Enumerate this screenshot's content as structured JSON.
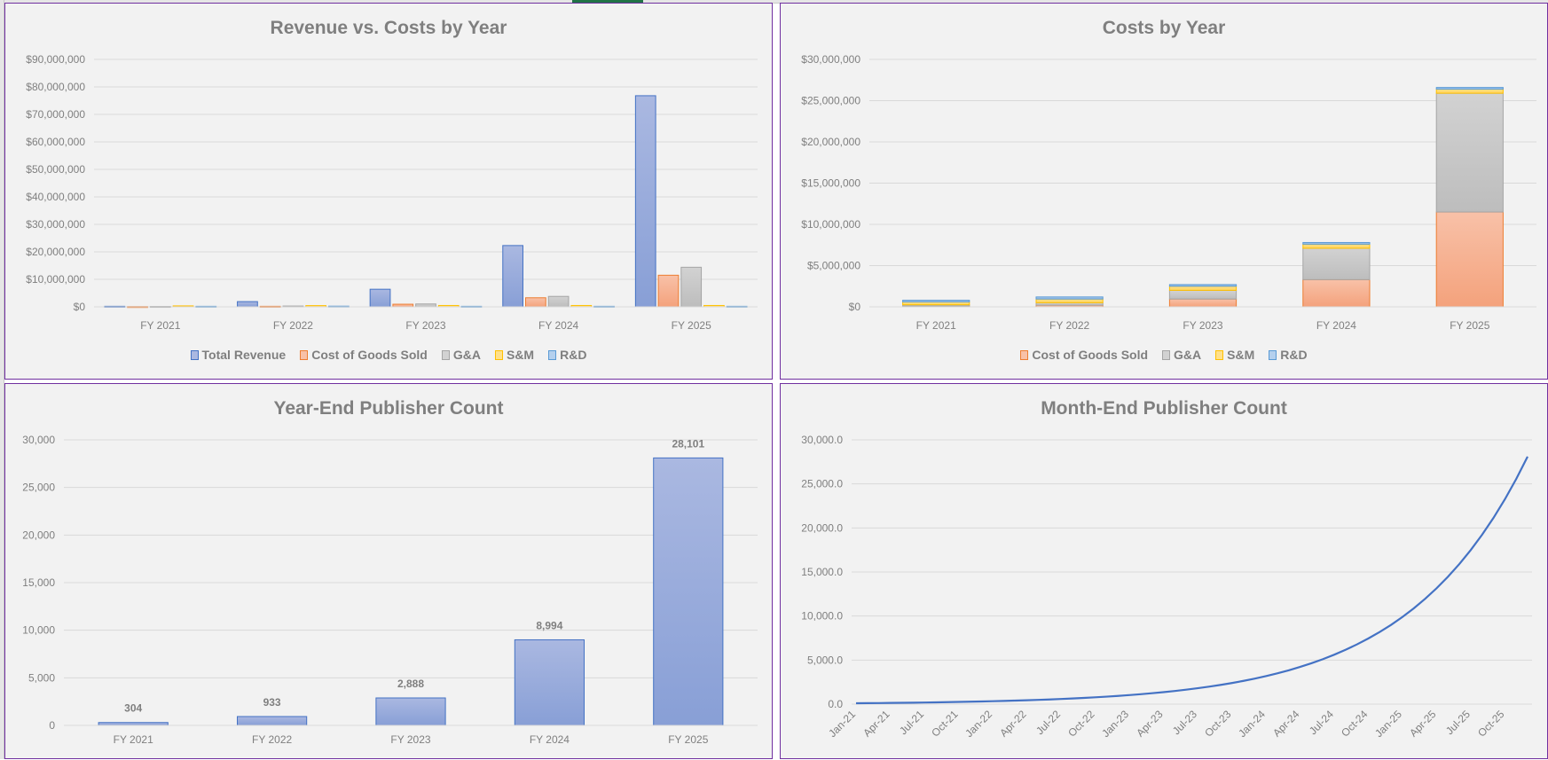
{
  "chart_data": [
    {
      "type": "bar",
      "title": "Revenue vs. Costs by Year",
      "categories": [
        "FY 2021",
        "FY 2022",
        "FY 2023",
        "FY 2024",
        "FY 2025"
      ],
      "ylim": [
        0,
        90000000
      ],
      "ytick_labels": [
        "$0",
        "$10,000,000",
        "$20,000,000",
        "$30,000,000",
        "$40,000,000",
        "$50,000,000",
        "$60,000,000",
        "$70,000,000",
        "$80,000,000",
        "$90,000,000"
      ],
      "grid": true,
      "legend": "bottom",
      "series": [
        {
          "name": "Total Revenue",
          "color": "#4472c4",
          "values": [
            200000,
            1900000,
            6400000,
            22300000,
            76800000
          ]
        },
        {
          "name": "Cost of Goods Sold",
          "color": "#ed7d31",
          "values": [
            100000,
            200000,
            950000,
            3300000,
            11500000
          ]
        },
        {
          "name": "G&A",
          "color": "#a5a5a5",
          "values": [
            150000,
            300000,
            1050000,
            3800000,
            14400000
          ]
        },
        {
          "name": "S&M",
          "color": "#ffc000",
          "values": [
            350000,
            450000,
            500000,
            500000,
            500000
          ]
        },
        {
          "name": "R&D",
          "color": "#5b9bd5",
          "values": [
            200000,
            250000,
            200000,
            200000,
            200000
          ]
        }
      ]
    },
    {
      "type": "bar",
      "stacked": true,
      "title": "Costs by Year",
      "categories": [
        "FY 2021",
        "FY 2022",
        "FY 2023",
        "FY 2024",
        "FY 2025"
      ],
      "ylim": [
        0,
        30000000
      ],
      "ytick_labels": [
        "$0",
        "$5,000,000",
        "$10,000,000",
        "$15,000,000",
        "$20,000,000",
        "$25,000,000",
        "$30,000,000"
      ],
      "grid": true,
      "legend": "bottom",
      "series": [
        {
          "name": "Cost of Goods Sold",
          "color": "#ed7d31",
          "values": [
            100000,
            200000,
            950000,
            3300000,
            11500000
          ]
        },
        {
          "name": "G&A",
          "color": "#a5a5a5",
          "values": [
            150000,
            300000,
            1050000,
            3800000,
            14400000
          ]
        },
        {
          "name": "S&M",
          "color": "#ffc000",
          "values": [
            350000,
            450000,
            500000,
            500000,
            500000
          ]
        },
        {
          "name": "R&D",
          "color": "#5b9bd5",
          "values": [
            200000,
            250000,
            200000,
            200000,
            200000
          ]
        }
      ]
    },
    {
      "type": "bar",
      "title": "Year-End Publisher Count",
      "categories": [
        "FY 2021",
        "FY 2022",
        "FY 2023",
        "FY 2024",
        "FY 2025"
      ],
      "ylim": [
        0,
        30000
      ],
      "ytick_labels": [
        "0",
        "5,000",
        "10,000",
        "15,000",
        "20,000",
        "25,000",
        "30,000"
      ],
      "grid": true,
      "series": [
        {
          "color": "#4472c4",
          "values": [
            304,
            933,
            2888,
            8994,
            28101
          ]
        }
      ],
      "data_labels": [
        "304",
        "933",
        "2,888",
        "8,994",
        "28,101"
      ]
    },
    {
      "type": "line",
      "title": "Month-End Publisher Count",
      "categories": [
        "Jan-21",
        "Feb-21",
        "Mar-21",
        "Apr-21",
        "May-21",
        "Jun-21",
        "Jul-21",
        "Aug-21",
        "Sep-21",
        "Oct-21",
        "Nov-21",
        "Dec-21",
        "Jan-22",
        "Feb-22",
        "Mar-22",
        "Apr-22",
        "May-22",
        "Jun-22",
        "Jul-22",
        "Aug-22",
        "Sep-22",
        "Oct-22",
        "Nov-22",
        "Dec-22",
        "Jan-23",
        "Feb-23",
        "Mar-23",
        "Apr-23",
        "May-23",
        "Jun-23",
        "Jul-23",
        "Aug-23",
        "Sep-23",
        "Oct-23",
        "Nov-23",
        "Dec-23",
        "Jan-24",
        "Feb-24",
        "Mar-24",
        "Apr-24",
        "May-24",
        "Jun-24",
        "Jul-24",
        "Aug-24",
        "Sep-24",
        "Oct-24",
        "Nov-24",
        "Dec-24",
        "Jan-25",
        "Feb-25",
        "Mar-25",
        "Apr-25",
        "May-25",
        "Jun-25",
        "Jul-25",
        "Aug-25",
        "Sep-25",
        "Oct-25",
        "Nov-25",
        "Dec-25"
      ],
      "xtick_labels": [
        "Jan-21",
        "Apr-21",
        "Jul-21",
        "Oct-21",
        "Jan-22",
        "Apr-22",
        "Jul-22",
        "Oct-22",
        "Jan-23",
        "Apr-23",
        "Jul-23",
        "Oct-23",
        "Jan-24",
        "Apr-24",
        "Jul-24",
        "Oct-24",
        "Jan-25",
        "Apr-25",
        "Jul-25",
        "Oct-25"
      ],
      "ylim": [
        0,
        30000
      ],
      "ytick_labels": [
        "0.0",
        "5,000.0",
        "10,000.0",
        "15,000.0",
        "20,000.0",
        "25,000.0",
        "30,000.0"
      ],
      "grid": true,
      "series": [
        {
          "color": "#4472c4",
          "values": [
            100,
            111,
            122,
            135,
            150,
            166,
            183,
            203,
            225,
            249,
            275,
            304,
            334,
            367,
            402,
            442,
            485,
            532,
            585,
            642,
            705,
            774,
            850,
            933,
            1025,
            1126,
            1238,
            1360,
            1494,
            1642,
            1804,
            1982,
            2178,
            2393,
            2630,
            2888,
            3175,
            3490,
            3837,
            4219,
            4638,
            5099,
            5606,
            6163,
            6776,
            7449,
            8190,
            8994,
            9890,
            10875,
            11958,
            13149,
            14459,
            15899,
            17483,
            19224,
            21139,
            23244,
            25560,
            28101
          ]
        }
      ]
    }
  ]
}
